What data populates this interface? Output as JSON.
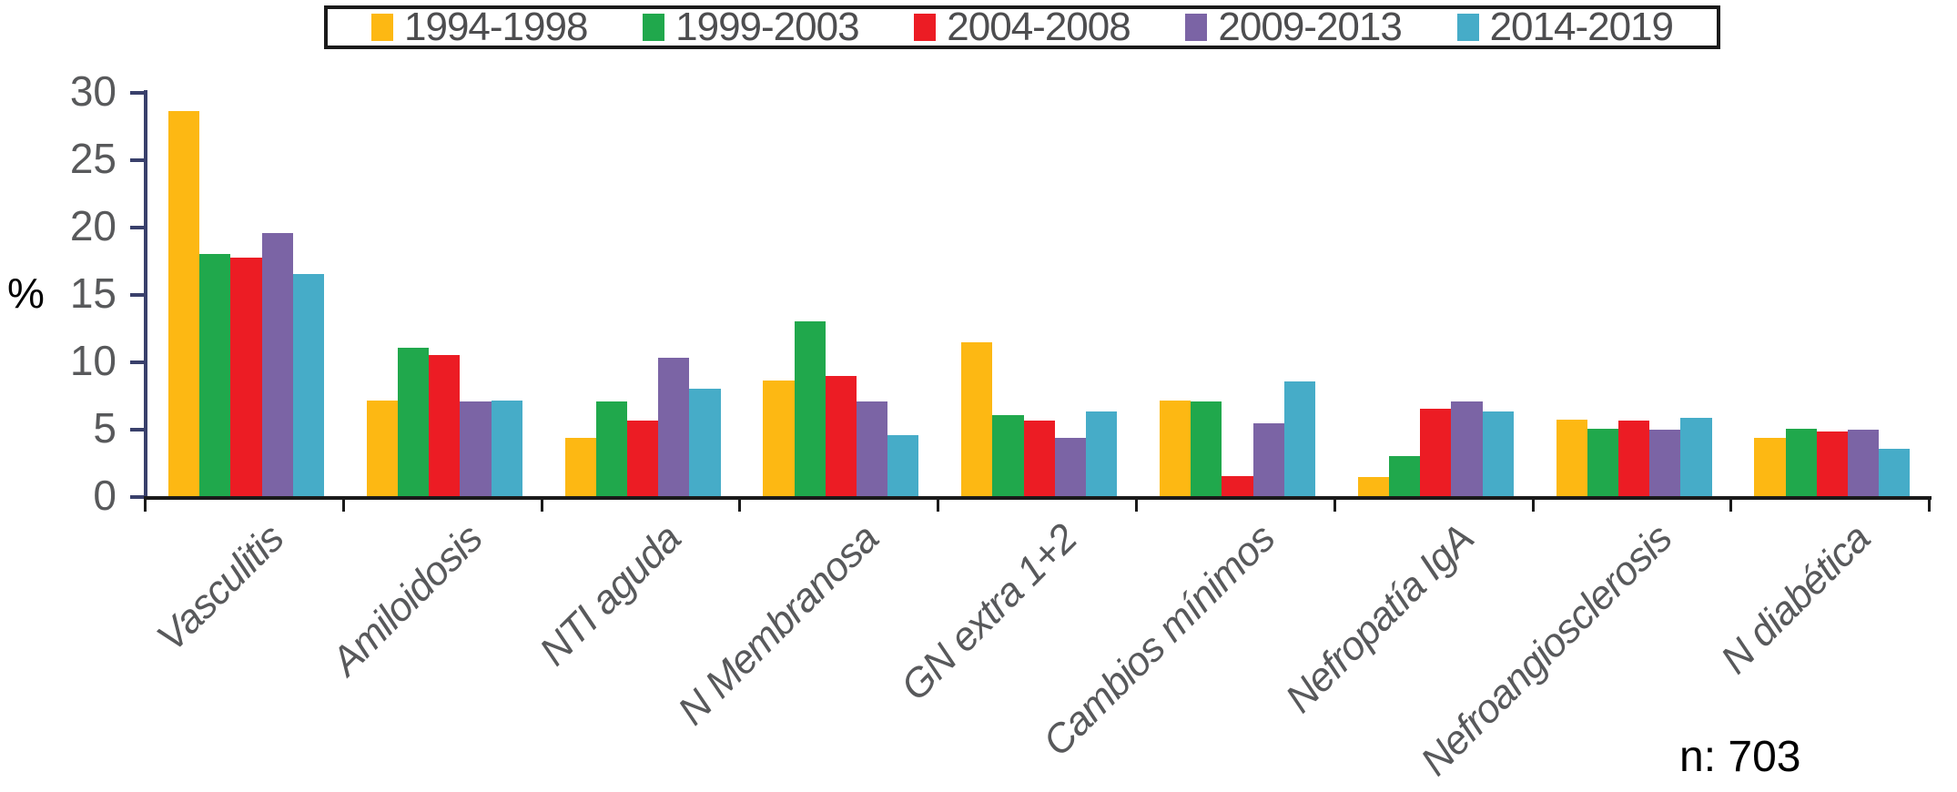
{
  "chart_data": {
    "type": "bar",
    "title": "",
    "ylabel": "%",
    "ylim": [
      0,
      30
    ],
    "yticks": [
      0,
      5,
      10,
      15,
      20,
      25,
      30
    ],
    "grid": false,
    "legend_position": "top-center-boxed",
    "categories": [
      "Vasculitis",
      "Amiloidosis",
      "NTI aguda",
      "N Membranosa",
      "GN extra 1+2",
      "Cambios mínimos",
      "Nefropatía IgA",
      "Nefroangiosclerosis",
      "N diabética"
    ],
    "series": [
      {
        "name": "1994-1998",
        "color": "#FDB813",
        "values": [
          28.6,
          7.1,
          4.3,
          8.6,
          11.4,
          7.1,
          1.4,
          5.7,
          4.3
        ]
      },
      {
        "name": "1999-2003",
        "color": "#20A84C",
        "values": [
          18.0,
          11.0,
          7.0,
          13.0,
          6.0,
          7.0,
          3.0,
          5.0,
          5.0
        ]
      },
      {
        "name": "2004-2008",
        "color": "#EC1C24",
        "values": [
          17.7,
          10.5,
          5.6,
          8.9,
          5.6,
          1.5,
          6.5,
          5.6,
          4.8
        ]
      },
      {
        "name": "2009-2013",
        "color": "#7B64A5",
        "values": [
          19.5,
          7.0,
          10.3,
          7.0,
          4.3,
          5.4,
          7.0,
          4.9,
          4.9
        ]
      },
      {
        "name": "2014-2019",
        "color": "#46ACC8",
        "values": [
          16.5,
          7.1,
          8.0,
          4.5,
          6.3,
          8.5,
          6.3,
          5.8,
          3.5
        ]
      }
    ],
    "annotation": "n: 703",
    "colors": {
      "axis": "#39406B",
      "baseline": "#1A1A1A",
      "tick_label": "#58595B",
      "legend_text": "#4D4D4F"
    }
  }
}
